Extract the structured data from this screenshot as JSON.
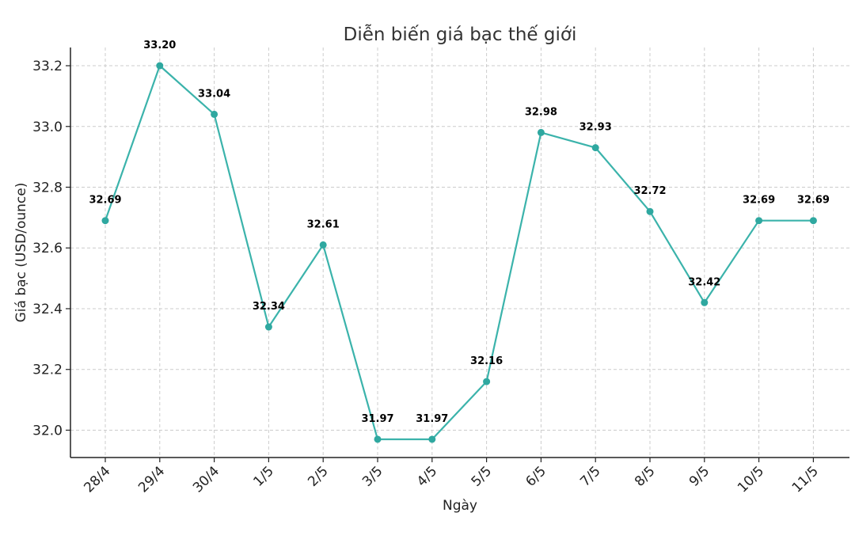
{
  "chart_data": {
    "type": "line",
    "title": "Diễn biến giá bạc thế giới",
    "xlabel": "Ngày",
    "ylabel": "Giá bạc (USD/ounce)",
    "categories": [
      "28/4",
      "29/4",
      "30/4",
      "1/5",
      "2/5",
      "3/5",
      "4/5",
      "5/5",
      "6/5",
      "7/5",
      "8/5",
      "9/5",
      "10/5",
      "11/5"
    ],
    "series": [
      {
        "values": [
          32.69,
          33.2,
          33.04,
          32.34,
          32.61,
          31.97,
          31.97,
          32.16,
          32.98,
          32.93,
          32.72,
          32.42,
          32.69,
          32.69
        ]
      }
    ],
    "data_labels": [
      "32.69",
      "33.20",
      "33.04",
      "32.34",
      "32.61",
      "31.97",
      "31.97",
      "32.16",
      "32.98",
      "32.93",
      "32.72",
      "32.42",
      "32.69",
      "32.69"
    ],
    "yticks": [
      32.0,
      32.2,
      32.4,
      32.6,
      32.8,
      33.0,
      33.2
    ],
    "ytick_labels": [
      "32.0",
      "32.2",
      "32.4",
      "32.6",
      "32.8",
      "33.0",
      "33.2"
    ],
    "ylim": [
      31.91,
      33.26
    ],
    "grid": true,
    "line_color": "#3BB3AB",
    "marker_color": "#2FA8A0"
  }
}
